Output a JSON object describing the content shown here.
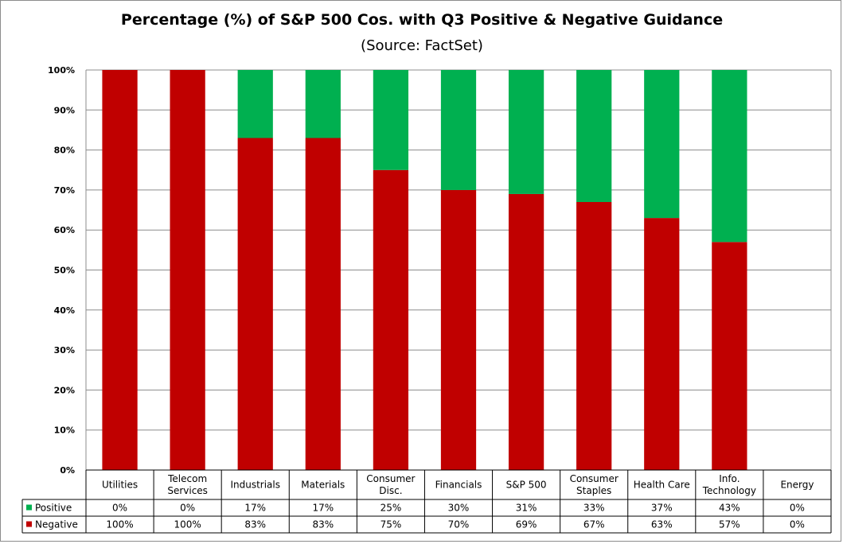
{
  "chart_data": {
    "type": "bar",
    "stacked": true,
    "title": "Percentage (%) of S&P 500 Cos. with Q3 Positive & Negative Guidance",
    "subtitle": "(Source: FactSet)",
    "categories": [
      [
        "Utilities"
      ],
      [
        "Telecom",
        "Services"
      ],
      [
        "Industrials"
      ],
      [
        "Materials"
      ],
      [
        "Consumer",
        "Disc."
      ],
      [
        "Financials"
      ],
      [
        "S&P 500"
      ],
      [
        "Consumer",
        "Staples"
      ],
      [
        "Health Care"
      ],
      [
        "Info.",
        "Technology"
      ],
      [
        "Energy"
      ]
    ],
    "series": [
      {
        "name": "Negative",
        "color": "#c00000",
        "values": [
          100,
          100,
          83,
          83,
          75,
          70,
          69,
          67,
          63,
          57,
          0
        ]
      },
      {
        "name": "Positive",
        "color": "#00b050",
        "values": [
          0,
          0,
          17,
          17,
          25,
          30,
          31,
          33,
          37,
          43,
          0
        ]
      }
    ],
    "ylim": [
      0,
      100
    ],
    "yticks": [
      "0%",
      "10%",
      "20%",
      "30%",
      "40%",
      "50%",
      "60%",
      "70%",
      "80%",
      "90%",
      "100%"
    ],
    "grid": true,
    "data_table": {
      "legend_order": [
        "Positive",
        "Negative"
      ],
      "rows": {
        "Positive": [
          "0%",
          "0%",
          "17%",
          "17%",
          "25%",
          "30%",
          "31%",
          "33%",
          "37%",
          "43%",
          "0%"
        ],
        "Negative": [
          "100%",
          "100%",
          "83%",
          "83%",
          "75%",
          "70%",
          "69%",
          "67%",
          "63%",
          "57%",
          "0%"
        ]
      }
    }
  }
}
